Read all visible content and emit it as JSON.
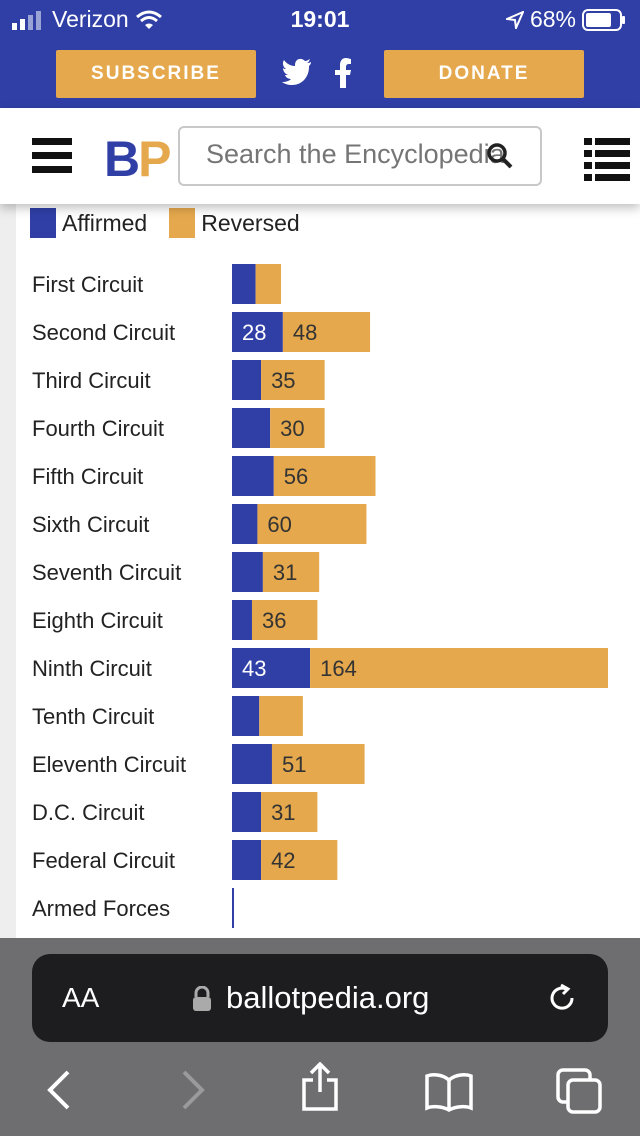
{
  "status_bar": {
    "carrier": "Verizon",
    "time": "19:01",
    "battery": "68%"
  },
  "topbar": {
    "subscribe_label": "SUBSCRIBE",
    "donate_label": "DONATE"
  },
  "header": {
    "logo_b": "B",
    "logo_p": "P",
    "search_placeholder": "Search the Encyclopedia"
  },
  "browser": {
    "text_size_label": "AA",
    "url": "ballotpedia.org"
  },
  "colors": {
    "brand_blue": "#2f3fa6",
    "brand_orange": "#e5a84d"
  },
  "chart_data": {
    "type": "bar",
    "orientation": "horizontal",
    "stacked": true,
    "legend": [
      "Affirmed",
      "Reversed"
    ],
    "categories": [
      "First Circuit",
      "Second Circuit",
      "Third Circuit",
      "Fourth Circuit",
      "Fifth Circuit",
      "Sixth Circuit",
      "Seventh Circuit",
      "Eighth Circuit",
      "Ninth Circuit",
      "Tenth Circuit",
      "Eleventh Circuit",
      "D.C. Circuit",
      "Federal Circuit",
      "Armed Forces"
    ],
    "series": [
      {
        "name": "Affirmed",
        "color": "#2f3fa6",
        "values": [
          13,
          28,
          16,
          21,
          23,
          14,
          17,
          11,
          43,
          15,
          22,
          16,
          16,
          1
        ],
        "labels": [
          "",
          "28",
          "",
          "",
          "",
          "",
          "",
          "",
          "43",
          "",
          "",
          "",
          "",
          ""
        ]
      },
      {
        "name": "Reversed",
        "color": "#e5a84d",
        "values": [
          14,
          48,
          35,
          30,
          56,
          60,
          31,
          36,
          164,
          24,
          51,
          31,
          42,
          0
        ],
        "labels": [
          "",
          "48",
          "35",
          "30",
          "56",
          "60",
          "31",
          "36",
          "164",
          "",
          "51",
          "31",
          "42",
          ""
        ]
      }
    ],
    "xmax": 207
  }
}
